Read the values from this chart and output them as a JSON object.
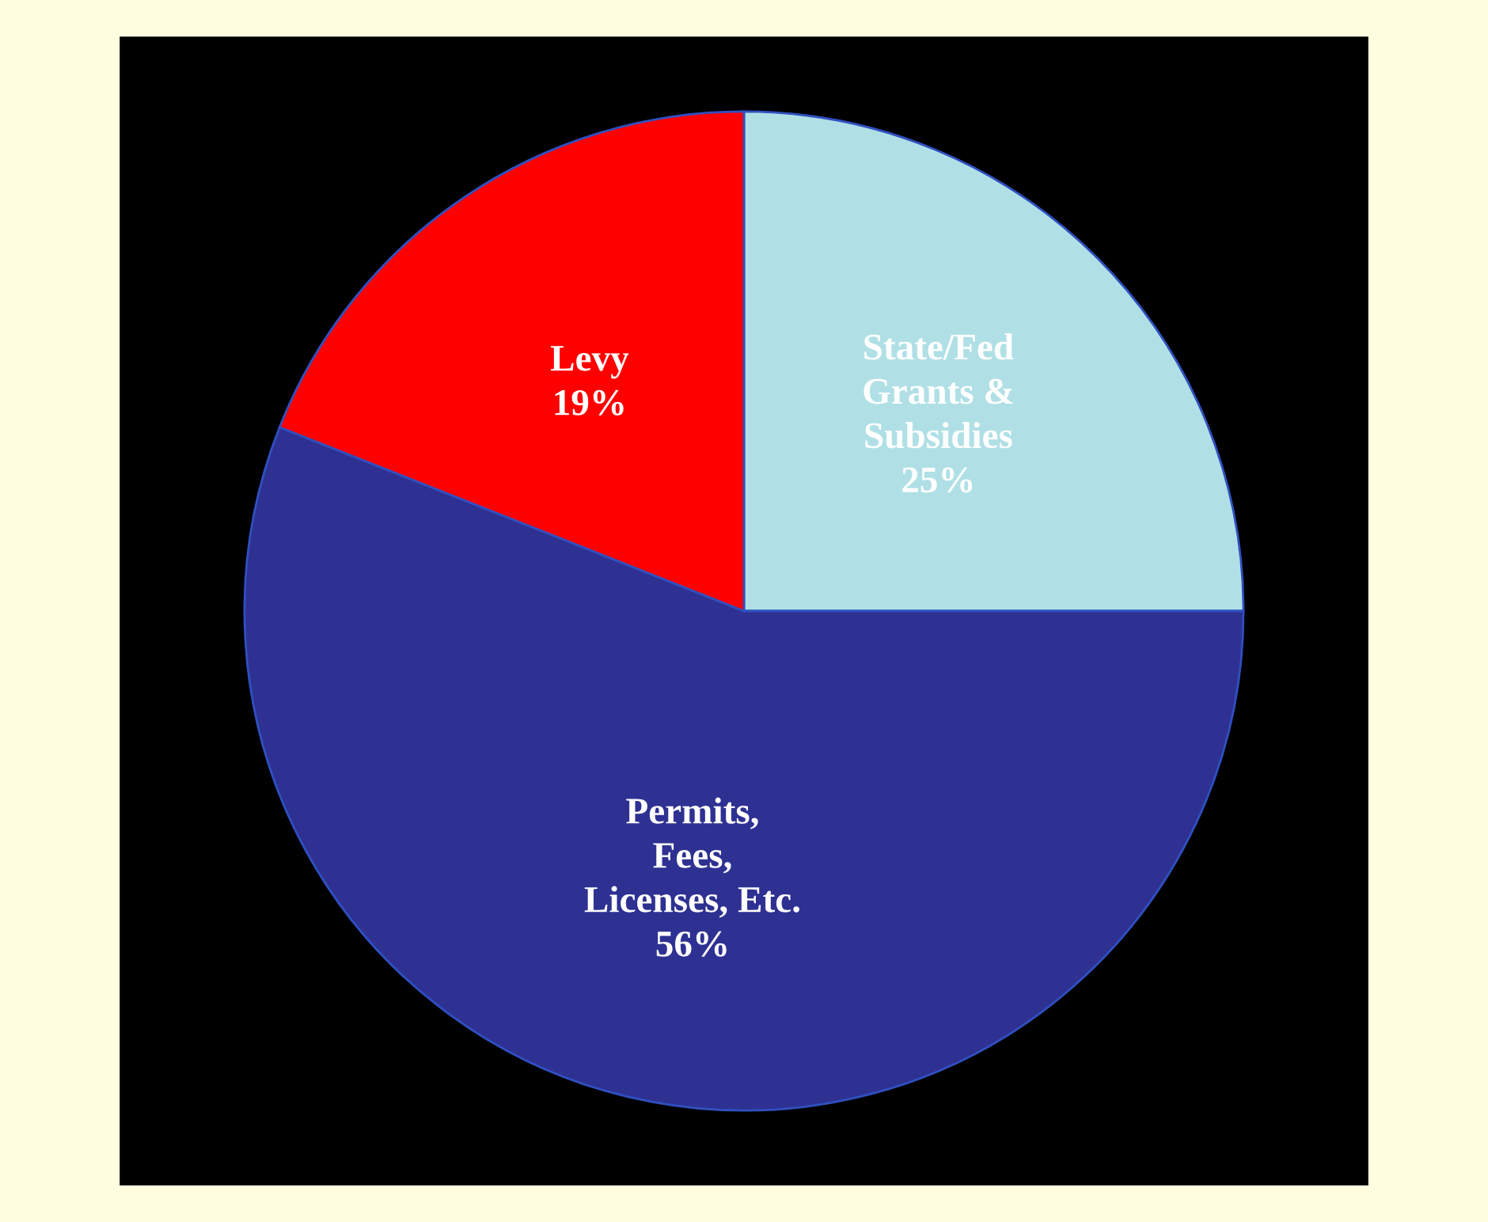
{
  "chart_data": {
    "type": "pie",
    "categories": [
      "State/Fed\nGrants &\nSubsidies",
      "Permits,\nFees,\nLicenses, Etc.",
      "Levy"
    ],
    "values": [
      25,
      56,
      19
    ],
    "value_labels": [
      "25%",
      "56%",
      "19%"
    ],
    "colors": [
      "#b0e0e6",
      "#2e3192",
      "#ff0000"
    ],
    "legend": false
  }
}
